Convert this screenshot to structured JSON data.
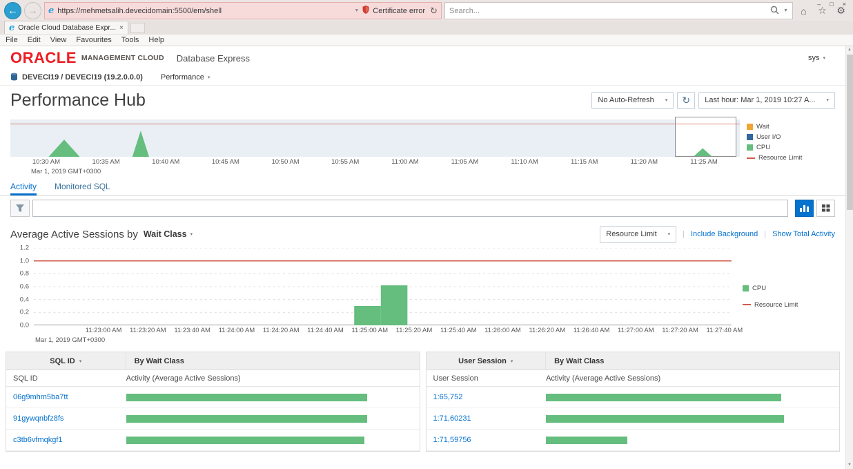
{
  "colors": {
    "oracle_red": "#ed1c24",
    "accent_blue": "#0572ce",
    "cpu_green": "#65bd7e",
    "wait_orange": "#f0a431",
    "user_io_blue": "#30679e",
    "resource_limit_red": "#d25b4a",
    "cert_error_pink": "#f7dbdb"
  },
  "icons": {
    "back": "←",
    "forward": "→",
    "chevron_down": "▾",
    "dropdown_arrow": "▼",
    "refresh": "↻",
    "home": "⌂",
    "star": "☆",
    "gear": "⚙",
    "minimize": "–",
    "maximize": "□",
    "close": "×",
    "scroll_up": "▲",
    "scroll_down": "▼",
    "separator": "|"
  },
  "browser": {
    "url": "https://mehmetsalih.devecidomain:5500/em/shell",
    "certificate_error_label": "Certificate error",
    "search_placeholder": "Search...",
    "tab": {
      "title": "Oracle Cloud Database Expr...",
      "close": "×"
    },
    "menus": [
      "File",
      "Edit",
      "View",
      "Favourites",
      "Tools",
      "Help"
    ]
  },
  "header": {
    "logo": "ORACLE",
    "logo_suffix": "MANAGEMENT CLOUD",
    "product": "Database Express",
    "user_menu": "sys"
  },
  "context_bar": {
    "target": "DEVECI19 / DEVECI19 (19.2.0.0.0)",
    "menu_label": "Performance"
  },
  "toolbar": {
    "title": "Performance Hub",
    "auto_refresh": "No Auto-Refresh",
    "time_selector": "Last hour: Mar 1, 2019 10:27 A..."
  },
  "tabs": {
    "activity": "Activity",
    "monitored_sql": "Monitored SQL"
  },
  "aas_section": {
    "title_prefix": "Average Active Sessions by",
    "dimension": "Wait Class",
    "overlay_selector": "Resource Limit",
    "link_include_background": "Include Background",
    "link_show_total": "Show Total Activity"
  },
  "sql_panel": {
    "selector_label": "SQL ID",
    "group_label": "By Wait Class",
    "columns": [
      "SQL ID",
      "Activity (Average Active Sessions)"
    ],
    "rows": [
      {
        "label": "06g9mhm5ba7tt",
        "bar_pct": 83
      },
      {
        "label": "91gywqnbfz8fs",
        "bar_pct": 83
      },
      {
        "label": "c3tb6vfmqkgf1",
        "bar_pct": 82
      }
    ]
  },
  "session_panel": {
    "selector_label": "User Session",
    "group_label": "By Wait Class",
    "columns": [
      "User Session",
      "Activity (Average Active Sessions)"
    ],
    "rows": [
      {
        "label": "1:65,752",
        "bar_pct": 81
      },
      {
        "label": "1:71,60231",
        "bar_pct": 82
      },
      {
        "label": "1:71,59756",
        "bar_pct": 28
      }
    ]
  },
  "chart_data": [
    {
      "id": "timeline-overview",
      "type": "area",
      "title": "Performance Hub activity timeline (last hour)",
      "x_axis": {
        "total_minutes": 61,
        "tick_minutes": [
          3,
          8,
          13,
          18,
          23,
          28,
          33,
          38,
          43,
          48,
          53,
          58
        ],
        "tick_labels": [
          "10:30 AM",
          "10:35 AM",
          "10:40 AM",
          "10:45 AM",
          "10:50 AM",
          "10:55 AM",
          "11:00 AM",
          "11:05 AM",
          "11:10 AM",
          "11:15 AM",
          "11:20 AM",
          "11:25 AM"
        ],
        "sub_label": "Mar 1, 2019 GMT+0300"
      },
      "resource_limit_frac": 0.88,
      "series": [
        {
          "name": "CPU",
          "color": "#65bd7e",
          "peaks": [
            {
              "min": 4.5,
              "height": 0.46,
              "half_width": 1.3
            },
            {
              "min": 10.9,
              "height": 0.7,
              "half_width": 0.7
            },
            {
              "min": 57.9,
              "height": 0.23,
              "half_width": 0.8
            }
          ]
        }
      ],
      "selection": {
        "start_min": 55.6,
        "end_min": 60.7
      },
      "legend": [
        {
          "label": "Wait",
          "swatch": "square",
          "color": "#f0a431"
        },
        {
          "label": "User I/O",
          "swatch": "square",
          "color": "#30679e"
        },
        {
          "label": "CPU",
          "swatch": "square",
          "color": "#65bd7e"
        },
        {
          "label": "Resource Limit",
          "swatch": "line",
          "color": "#d25b4a"
        }
      ]
    },
    {
      "id": "aas-by-wait-class",
      "type": "bar",
      "title": "Average Active Sessions by Wait Class",
      "ylim": [
        0,
        1.2
      ],
      "y_ticks": [
        0,
        0.2,
        0.4,
        0.6,
        0.8,
        1,
        1.2
      ],
      "resource_limit": 1,
      "x_axis": {
        "total_seconds": 280,
        "tick_seconds": [
          0,
          20,
          40,
          60,
          80,
          100,
          120,
          140,
          160,
          180,
          200,
          220,
          240,
          260,
          280
        ],
        "tick_labels": [
          "11:23:00 AM",
          "11:23:20 AM",
          "11:23:40 AM",
          "11:24:00 AM",
          "11:24:20 AM",
          "11:24:40 AM",
          "11:25:00 AM",
          "11:25:20 AM",
          "11:25:40 AM",
          "11:26:00 AM",
          "11:26:20 AM",
          "11:26:40 AM",
          "11:27:00 AM",
          "11:27:20 AM",
          "11:27:40 AM"
        ],
        "sub_label": "Mar 1, 2019 GMT+0300"
      },
      "bars": [
        {
          "start_sec": 113,
          "end_sec": 125,
          "value": 0.3
        },
        {
          "start_sec": 125,
          "end_sec": 137,
          "value": 0.62
        }
      ],
      "bar_color": "#65bd7e",
      "legend": [
        {
          "label": "CPU",
          "swatch": "square",
          "color": "#65bd7e"
        },
        {
          "label": "Resource Limit",
          "swatch": "line",
          "color": "#d25b4a"
        }
      ]
    },
    {
      "id": "top-sql",
      "type": "bar",
      "orientation": "horizontal",
      "categories": [
        "06g9mhm5ba7tt",
        "91gywqnbfz8fs",
        "c3tb6vfmqkgf1"
      ],
      "values_pct": [
        83,
        83,
        82
      ]
    },
    {
      "id": "top-user-sessions",
      "type": "bar",
      "orientation": "horizontal",
      "categories": [
        "1:65,752",
        "1:71,60231",
        "1:71,59756"
      ],
      "values_pct": [
        81,
        82,
        28
      ]
    }
  ]
}
